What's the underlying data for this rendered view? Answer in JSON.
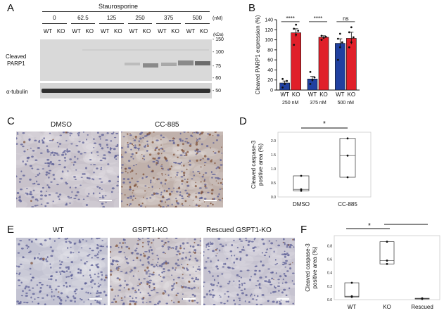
{
  "panels": {
    "A": {
      "letter": "A",
      "title": "Staurosporine",
      "unit": "(nM)",
      "kda": "(kDa)",
      "concentrations": [
        "0",
        "62.5",
        "125",
        "250",
        "375",
        "500"
      ],
      "genotypes": [
        "WT",
        "KO"
      ],
      "markers_parp": [
        "150",
        "100",
        "75",
        "60"
      ],
      "markers_tub": [
        "50"
      ],
      "label_parp_1": "Cleaved",
      "label_parp_2": "PARP1",
      "label_tub": "α-tubulin"
    },
    "B": {
      "letter": "B",
      "ylabel": "Cleaved PARP1 expression (%)",
      "groups": [
        "250 nM",
        "375 nM",
        "500 nM"
      ],
      "sig": [
        "****",
        "****",
        "ns"
      ]
    },
    "C": {
      "letter": "C",
      "labels": [
        "DMSO",
        "CC-885"
      ]
    },
    "D": {
      "letter": "D",
      "ylabel_1": "Cleaved caspase-3",
      "ylabel_2": "positive area (%)",
      "sig": "*"
    },
    "E": {
      "letter": "E",
      "labels": [
        "WT",
        "GSPT1-KO",
        "Rescued GSPT1-KO"
      ]
    },
    "F": {
      "letter": "F",
      "ylabel_1": "Cleaved caspase-3",
      "ylabel_2": "positive area (%)",
      "sig": [
        "*",
        "**"
      ]
    }
  },
  "colors": {
    "wt": "#2040a0",
    "ko": "#e0202a",
    "tissue": "#cdc5c8"
  },
  "chart_data": [
    {
      "type": "bar",
      "panel": "B",
      "ylabel": "Cleaved PARP1 expression (%)",
      "ylim": [
        0,
        140
      ],
      "yticks": [
        0,
        20,
        40,
        60,
        80,
        100,
        120,
        140
      ],
      "categories": [
        "250 nM",
        "375 nM",
        "500 nM"
      ],
      "genotype_labels": [
        "WT",
        "KO",
        "WT",
        "KO",
        "WT",
        "KO"
      ],
      "series": [
        {
          "name": "WT",
          "values": [
            14,
            22,
            93
          ],
          "errors": [
            4,
            5,
            9
          ]
        },
        {
          "name": "KO",
          "values": [
            114,
            105,
            103
          ],
          "errors": [
            8,
            3,
            12
          ]
        }
      ],
      "points": {
        "WT": [
          [
            5,
            12,
            18,
            22
          ],
          [
            12,
            20,
            25,
            36
          ],
          [
            60,
            85,
            95,
            102,
            112
          ]
        ],
        "KO": [
          [
            90,
            110,
            118,
            122,
            130
          ],
          [
            100,
            104,
            106,
            108
          ],
          [
            85,
            95,
            105,
            115,
            125
          ]
        ]
      },
      "significance": [
        "****",
        "****",
        "ns"
      ]
    },
    {
      "type": "box",
      "panel": "D",
      "categories": [
        "DMSO",
        "CC-885"
      ],
      "ylim": [
        0,
        2.3
      ],
      "yticks": [
        "0.0",
        "0.5",
        "1.0",
        "1.5",
        "2.0"
      ],
      "ytick_values": [
        0,
        0.5,
        1.0,
        1.5,
        2.0
      ],
      "boxes": [
        {
          "min": 0.22,
          "q1": 0.22,
          "median": 0.27,
          "q3": 0.75,
          "max": 0.75,
          "points": [
            0.22,
            0.27,
            0.75
          ]
        },
        {
          "min": 0.7,
          "q1": 0.7,
          "median": 1.47,
          "q3": 2.08,
          "max": 2.08,
          "points": [
            0.7,
            1.47,
            2.08
          ]
        }
      ],
      "significance": "*"
    },
    {
      "type": "box",
      "panel": "F",
      "categories": [
        "WT",
        "KO",
        "Rescued"
      ],
      "ylim": [
        0,
        0.95
      ],
      "yticks": [
        "0.0",
        "0.2",
        "0.4",
        "0.6",
        "0.8"
      ],
      "ytick_values": [
        0,
        0.2,
        0.4,
        0.6,
        0.8
      ],
      "boxes": [
        {
          "min": 0.04,
          "q1": 0.04,
          "median": 0.05,
          "q3": 0.25,
          "max": 0.25,
          "points": [
            0.04,
            0.05,
            0.25
          ]
        },
        {
          "min": 0.53,
          "q1": 0.53,
          "median": 0.58,
          "q3": 0.86,
          "max": 0.86,
          "points": [
            0.53,
            0.58,
            0.86
          ]
        },
        {
          "min": 0.01,
          "q1": 0.01,
          "median": 0.015,
          "q3": 0.02,
          "max": 0.02,
          "points": [
            0.01,
            0.015,
            0.02
          ]
        }
      ],
      "significance": [
        "*",
        "**"
      ]
    }
  ]
}
